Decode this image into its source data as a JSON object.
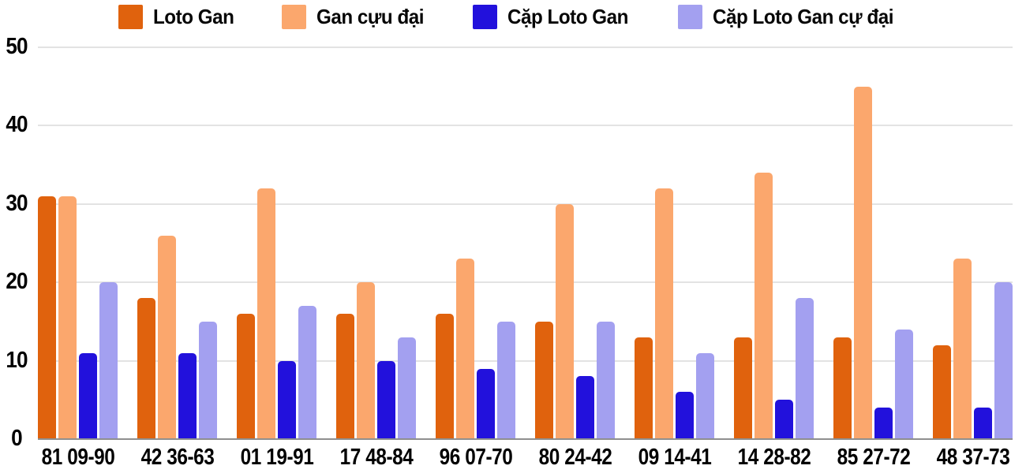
{
  "chart_data": {
    "type": "bar",
    "title": "",
    "xlabel": "",
    "ylabel": "",
    "categories": [
      "81 09-90",
      "42 36-63",
      "01 19-91",
      "17 48-84",
      "96 07-70",
      "80 24-42",
      "09 14-41",
      "14 28-82",
      "85 27-72",
      "48 37-73"
    ],
    "series": [
      {
        "name": "Loto Gan",
        "color": "#e0620d",
        "values": [
          31,
          18,
          16,
          16,
          16,
          15,
          13,
          13,
          13,
          12
        ]
      },
      {
        "name": "Gan cựu đại",
        "color": "#fba76d",
        "values": [
          31,
          26,
          32,
          20,
          23,
          30,
          32,
          34,
          45,
          23
        ]
      },
      {
        "name": "Cặp Loto Gan",
        "color": "#2211dc",
        "values": [
          11,
          11,
          10,
          10,
          9,
          8,
          6,
          5,
          4,
          4
        ]
      },
      {
        "name": "Cặp Loto Gan cự đại",
        "color": "#a3a0f0",
        "values": [
          20,
          15,
          17,
          13,
          15,
          15,
          11,
          18,
          14,
          20
        ]
      }
    ],
    "ylim": [
      0,
      50
    ],
    "yticks": [
      0,
      10,
      20,
      30,
      40,
      50
    ],
    "grid": true,
    "legend_position": "top"
  },
  "style_colors": {
    "gridline": "#e3e3e3",
    "baseline": "#8f8f8f",
    "text": "#000000",
    "background": "#ffffff"
  }
}
